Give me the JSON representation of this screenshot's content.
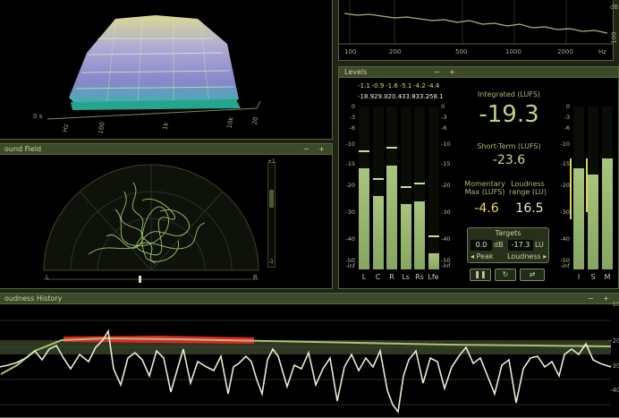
{
  "spectrogram": {
    "axis_label": "0 s",
    "freq_labels": [
      "Hz",
      "100",
      "1k",
      "10k",
      "20"
    ]
  },
  "spectrum": {
    "freq_labels": [
      "100",
      "200",
      "500",
      "1000",
      "2000",
      "Hz"
    ],
    "corner_label": "dB",
    "side_label": "100"
  },
  "sound_field": {
    "title": "ound Field",
    "controls": "− +",
    "left_label": "L",
    "right_label": "R",
    "scale_top": "+1",
    "scale_bottom": "-1"
  },
  "levels": {
    "title": "Levels",
    "controls": "− +",
    "scale": [
      "0",
      "-3",
      "-6",
      "-10",
      "-15",
      "-20",
      "-30",
      "-40",
      "-50",
      "-inf"
    ],
    "peaks": [
      "-1.1",
      "-0.9",
      "-1.6",
      "-5.1",
      "-4.2",
      "-4.4"
    ],
    "rms": [
      "-18.9",
      "-29.0",
      "-20.4",
      "-33.8",
      "-33.2",
      "-58.1"
    ],
    "channels": [
      "L",
      "C",
      "R",
      "Ls",
      "Rs",
      "Lfe"
    ],
    "channel_levels": [
      0.62,
      0.45,
      0.64,
      0.4,
      0.42,
      0.1
    ],
    "integrated_label": "Integrated (LUFS)",
    "integrated_value": "-19.3",
    "short_term_label": "Short-Term (LUFS)",
    "short_term_value": "-23.6",
    "momentary_label": "Momentary\nMax (LUFS)",
    "momentary_value": "-4.6",
    "loudness_range_label": "Loudness\nrange (LU)",
    "loudness_range_value": "16.5",
    "targets_title": "Targets",
    "target_peak": "0.0",
    "target_peak_unit": "dB",
    "target_loudness": "-17.3",
    "target_loudness_unit": "LU",
    "peak_btn": "◂ Peak",
    "loudness_btn": "Loudness ▸",
    "isum_channels": [
      "I",
      "S",
      "M"
    ],
    "isum_levels": [
      0.62,
      0.58,
      0.68
    ]
  },
  "loudness_history": {
    "title": "oudness History",
    "controls": "− +",
    "scale": [
      "-10",
      "-20",
      "-30",
      "-40"
    ]
  },
  "colors": {
    "accent": "#a8c46e",
    "panel_bg": "#000000",
    "frame": "#57653a",
    "header": "#3d4a2a"
  }
}
